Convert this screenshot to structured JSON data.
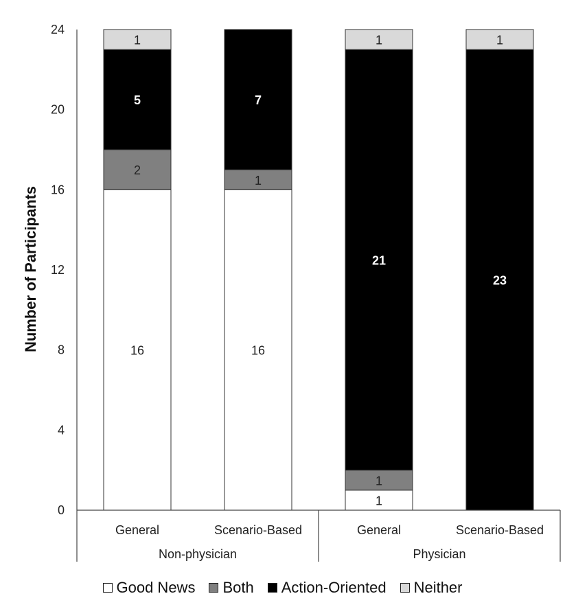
{
  "chart_data": {
    "type": "bar",
    "stacked": true,
    "title": "",
    "xlabel": "",
    "ylabel": "Number of Participants",
    "ylim": [
      0,
      24
    ],
    "yticks": [
      0,
      4,
      8,
      12,
      16,
      20,
      24
    ],
    "groups": [
      {
        "label": "Non-physician",
        "categories": [
          "General",
          "Scenario-Based"
        ]
      },
      {
        "label": "Physician",
        "categories": [
          "General",
          "Scenario-Based"
        ]
      }
    ],
    "categories": [
      "General",
      "Scenario-Based",
      "General",
      "Scenario-Based"
    ],
    "series": [
      {
        "name": "Good News",
        "color": "#ffffff",
        "label_color": "#222222",
        "bold": false,
        "values": [
          16,
          16,
          1,
          0
        ]
      },
      {
        "name": "Both",
        "color": "#808080",
        "label_color": "#222222",
        "bold": false,
        "values": [
          2,
          1,
          1,
          0
        ]
      },
      {
        "name": "Action-Oriented",
        "color": "#000000",
        "label_color": "#ffffff",
        "bold": true,
        "values": [
          5,
          7,
          21,
          23
        ]
      },
      {
        "name": "Neither",
        "color": "#d9d9d9",
        "label_color": "#222222",
        "bold": false,
        "values": [
          1,
          0,
          1,
          1
        ]
      }
    ],
    "legend_position": "bottom",
    "grid": false
  }
}
